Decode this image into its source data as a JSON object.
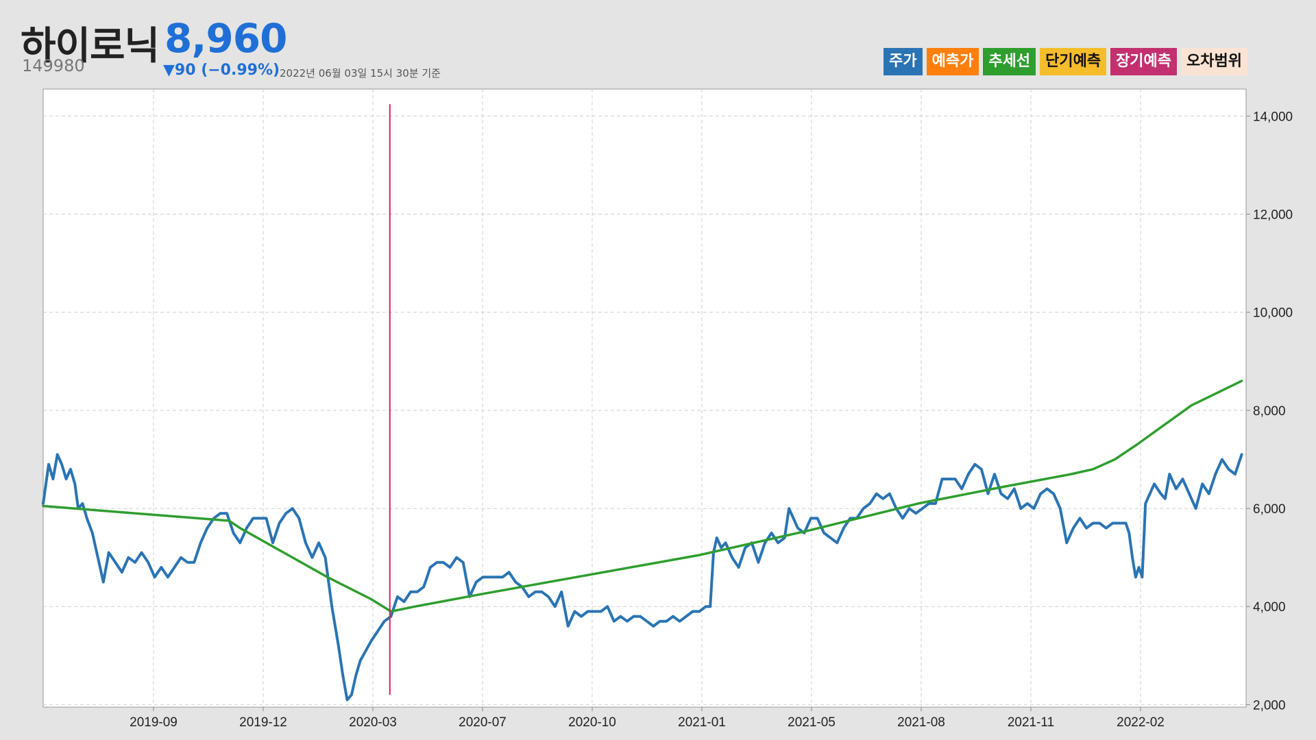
{
  "header": {
    "name": "하이로닉",
    "price": "8,960",
    "code": "149980",
    "change": "▼90 (−0.99%)",
    "date": "2022년 06월 03일 15시 30분 기준"
  },
  "legend": [
    {
      "label": "주가",
      "bg": "#2a74b3",
      "fg": "#ffffff"
    },
    {
      "label": "예측가",
      "bg": "#ff7f0e",
      "fg": "#ffffff"
    },
    {
      "label": "추세선",
      "bg": "#2e9e2e",
      "fg": "#ffffff"
    },
    {
      "label": "단기예측",
      "bg": "#f5bc2c",
      "fg": "#111111"
    },
    {
      "label": "장기예측",
      "bg": "#c2306f",
      "fg": "#ffffff"
    },
    {
      "label": "오차범위",
      "bg": "#fbe3d3",
      "fg": "#111111"
    }
  ],
  "chart_data": {
    "type": "line",
    "x_ticks": [
      "2019-09",
      "2019-12",
      "2020-03",
      "2020-07",
      "2020-10",
      "2021-01",
      "2021-05",
      "2021-08",
      "2021-11",
      "2022-02"
    ],
    "y_ticks": [
      "2,000",
      "4,000",
      "6,000",
      "8,000",
      "10,000",
      "12,000",
      "14,000"
    ],
    "ylim": [
      1950,
      14550
    ],
    "xlim": [
      0,
      1100
    ],
    "grid": true,
    "marker_x": 317,
    "series": [
      {
        "name": "주가",
        "color": "#2a74b3",
        "points": [
          [
            0,
            6100
          ],
          [
            5,
            6900
          ],
          [
            9,
            6600
          ],
          [
            13,
            7100
          ],
          [
            17,
            6900
          ],
          [
            21,
            6600
          ],
          [
            25,
            6800
          ],
          [
            29,
            6500
          ],
          [
            32,
            6000
          ],
          [
            36,
            6100
          ],
          [
            40,
            5800
          ],
          [
            45,
            5500
          ],
          [
            50,
            5000
          ],
          [
            55,
            4500
          ],
          [
            60,
            5100
          ],
          [
            66,
            4900
          ],
          [
            72,
            4700
          ],
          [
            78,
            5000
          ],
          [
            84,
            4900
          ],
          [
            90,
            5100
          ],
          [
            96,
            4900
          ],
          [
            102,
            4600
          ],
          [
            108,
            4800
          ],
          [
            114,
            4600
          ],
          [
            120,
            4800
          ],
          [
            126,
            5000
          ],
          [
            132,
            4900
          ],
          [
            138,
            4900
          ],
          [
            144,
            5300
          ],
          [
            150,
            5600
          ],
          [
            156,
            5800
          ],
          [
            162,
            5900
          ],
          [
            168,
            5900
          ],
          [
            174,
            5500
          ],
          [
            180,
            5300
          ],
          [
            186,
            5600
          ],
          [
            192,
            5800
          ],
          [
            198,
            5800
          ],
          [
            204,
            5800
          ],
          [
            210,
            5300
          ],
          [
            216,
            5700
          ],
          [
            222,
            5900
          ],
          [
            228,
            6000
          ],
          [
            234,
            5800
          ],
          [
            240,
            5300
          ],
          [
            246,
            5000
          ],
          [
            252,
            5300
          ],
          [
            258,
            5000
          ],
          [
            264,
            4000
          ],
          [
            270,
            3200
          ],
          [
            274,
            2600
          ],
          [
            278,
            2100
          ],
          [
            282,
            2200
          ],
          [
            286,
            2600
          ],
          [
            290,
            2900
          ],
          [
            295,
            3100
          ],
          [
            300,
            3300
          ],
          [
            306,
            3500
          ],
          [
            312,
            3700
          ],
          [
            318,
            3800
          ],
          [
            324,
            4200
          ],
          [
            330,
            4100
          ],
          [
            336,
            4300
          ],
          [
            342,
            4300
          ],
          [
            348,
            4400
          ],
          [
            354,
            4800
          ],
          [
            360,
            4900
          ],
          [
            366,
            4900
          ],
          [
            372,
            4800
          ],
          [
            378,
            5000
          ],
          [
            384,
            4900
          ],
          [
            390,
            4200
          ],
          [
            396,
            4500
          ],
          [
            402,
            4600
          ],
          [
            408,
            4600
          ],
          [
            414,
            4600
          ],
          [
            420,
            4600
          ],
          [
            426,
            4700
          ],
          [
            432,
            4500
          ],
          [
            438,
            4400
          ],
          [
            444,
            4200
          ],
          [
            450,
            4300
          ],
          [
            456,
            4300
          ],
          [
            462,
            4200
          ],
          [
            468,
            4000
          ],
          [
            474,
            4300
          ],
          [
            480,
            3600
          ],
          [
            486,
            3900
          ],
          [
            492,
            3800
          ],
          [
            498,
            3900
          ],
          [
            504,
            3900
          ],
          [
            510,
            3900
          ],
          [
            516,
            4000
          ],
          [
            522,
            3700
          ],
          [
            528,
            3800
          ],
          [
            534,
            3700
          ],
          [
            540,
            3800
          ],
          [
            546,
            3800
          ],
          [
            552,
            3700
          ],
          [
            558,
            3600
          ],
          [
            564,
            3700
          ],
          [
            570,
            3700
          ],
          [
            576,
            3800
          ],
          [
            582,
            3700
          ],
          [
            588,
            3800
          ],
          [
            594,
            3900
          ],
          [
            600,
            3900
          ],
          [
            606,
            4000
          ],
          [
            610,
            4000
          ],
          [
            613,
            5100
          ],
          [
            616,
            5400
          ],
          [
            620,
            5200
          ],
          [
            624,
            5300
          ],
          [
            630,
            5000
          ],
          [
            636,
            4800
          ],
          [
            642,
            5200
          ],
          [
            648,
            5300
          ],
          [
            654,
            4900
          ],
          [
            660,
            5300
          ],
          [
            666,
            5500
          ],
          [
            672,
            5300
          ],
          [
            678,
            5400
          ],
          [
            682,
            6000
          ],
          [
            686,
            5800
          ],
          [
            690,
            5600
          ],
          [
            696,
            5500
          ],
          [
            702,
            5800
          ],
          [
            708,
            5800
          ],
          [
            714,
            5500
          ],
          [
            720,
            5400
          ],
          [
            726,
            5300
          ],
          [
            732,
            5600
          ],
          [
            738,
            5800
          ],
          [
            744,
            5800
          ],
          [
            750,
            6000
          ],
          [
            756,
            6100
          ],
          [
            762,
            6300
          ],
          [
            768,
            6200
          ],
          [
            774,
            6300
          ],
          [
            780,
            6000
          ],
          [
            786,
            5800
          ],
          [
            792,
            6000
          ],
          [
            798,
            5900
          ],
          [
            804,
            6000
          ],
          [
            810,
            6100
          ],
          [
            816,
            6100
          ],
          [
            822,
            6600
          ],
          [
            828,
            6600
          ],
          [
            834,
            6600
          ],
          [
            840,
            6400
          ],
          [
            846,
            6700
          ],
          [
            852,
            6900
          ],
          [
            858,
            6800
          ],
          [
            864,
            6300
          ],
          [
            870,
            6700
          ],
          [
            876,
            6300
          ],
          [
            882,
            6200
          ],
          [
            888,
            6400
          ],
          [
            894,
            6000
          ],
          [
            900,
            6100
          ],
          [
            906,
            6000
          ],
          [
            912,
            6300
          ],
          [
            918,
            6400
          ],
          [
            924,
            6300
          ],
          [
            930,
            6000
          ],
          [
            936,
            5300
          ],
          [
            942,
            5600
          ],
          [
            948,
            5800
          ],
          [
            954,
            5600
          ],
          [
            960,
            5700
          ],
          [
            966,
            5700
          ],
          [
            972,
            5600
          ],
          [
            978,
            5700
          ],
          [
            984,
            5700
          ],
          [
            990,
            5700
          ],
          [
            993,
            5500
          ],
          [
            996,
            5000
          ],
          [
            999,
            4600
          ],
          [
            1002,
            4800
          ],
          [
            1005,
            4600
          ],
          [
            1008,
            6100
          ],
          [
            1012,
            6300
          ],
          [
            1016,
            6500
          ],
          [
            1022,
            6300
          ],
          [
            1026,
            6200
          ],
          [
            1030,
            6700
          ],
          [
            1036,
            6400
          ],
          [
            1042,
            6600
          ],
          [
            1048,
            6300
          ],
          [
            1054,
            6000
          ],
          [
            1060,
            6500
          ],
          [
            1066,
            6300
          ],
          [
            1072,
            6700
          ],
          [
            1078,
            7000
          ],
          [
            1084,
            6800
          ],
          [
            1090,
            6700
          ],
          [
            1096,
            7100
          ]
        ]
      },
      {
        "name": "추세선",
        "color": "#2e9e2e",
        "points": [
          [
            0,
            6050
          ],
          [
            170,
            5750
          ],
          [
            180,
            5600
          ],
          [
            220,
            5100
          ],
          [
            260,
            4600
          ],
          [
            300,
            4150
          ],
          [
            318,
            3900
          ],
          [
            340,
            4000
          ],
          [
            400,
            4250
          ],
          [
            500,
            4650
          ],
          [
            600,
            5050
          ],
          [
            700,
            5550
          ],
          [
            800,
            6100
          ],
          [
            880,
            6450
          ],
          [
            940,
            6700
          ],
          [
            960,
            6800
          ],
          [
            980,
            7000
          ],
          [
            1000,
            7300
          ],
          [
            1050,
            8100
          ],
          [
            1096,
            8600
          ]
        ]
      }
    ]
  }
}
